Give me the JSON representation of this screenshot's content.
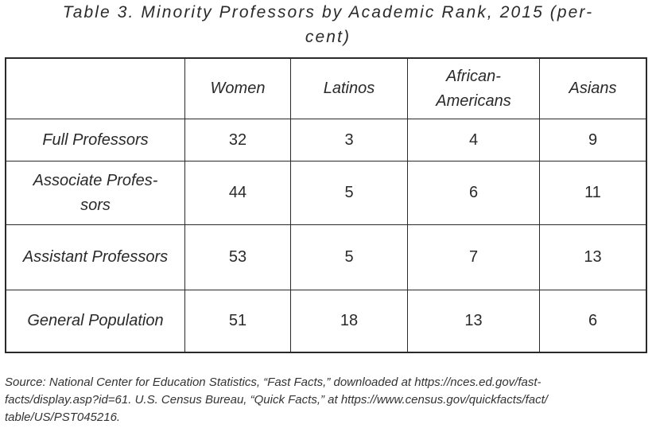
{
  "title": {
    "line1": "Table 3. Minority Professors by Academic Rank, 2015 (per-",
    "line2": "cent)"
  },
  "table": {
    "headers": {
      "corner": "",
      "col1": "Women",
      "col2": "Latinos",
      "col3": [
        "African-",
        "Americans"
      ],
      "col4": "Asians"
    },
    "rows": [
      {
        "label": [
          "Full Professors"
        ],
        "values": [
          "32",
          "3",
          "4",
          "9"
        ]
      },
      {
        "label": [
          "Associate Profes-",
          "sors"
        ],
        "values": [
          "44",
          "5",
          "6",
          "11"
        ]
      },
      {
        "label": [
          "Assistant Professors"
        ],
        "values": [
          "53",
          "5",
          "7",
          "13"
        ]
      },
      {
        "label": [
          "General Population"
        ],
        "values": [
          "51",
          "18",
          "13",
          "6"
        ]
      }
    ]
  },
  "source": {
    "line1": "Source: National Center for Education Statistics, “Fast Facts,” downloaded at https://nces.ed.gov/fast-",
    "line2": "facts/display.asp?id=61. U.S. Census Bureau, “Quick Facts,” at https://www.census.gov/quickfacts/fact/",
    "line3": "table/US/PST045216."
  }
}
